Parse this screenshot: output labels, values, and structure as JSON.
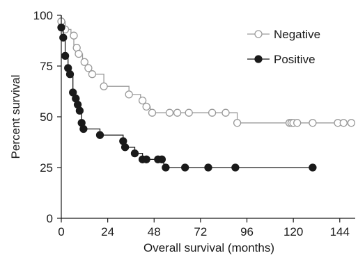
{
  "chart_data": {
    "type": "line",
    "title": "",
    "xlabel": "Overall survival (months)",
    "ylabel": "Percent survival",
    "xlim": [
      0,
      152
    ],
    "ylim": [
      0,
      100
    ],
    "xticks": [
      0,
      24,
      48,
      72,
      96,
      120,
      144
    ],
    "yticks": [
      0,
      25,
      50,
      75,
      100
    ],
    "grid": false,
    "legend_position": "top-right",
    "series": [
      {
        "name": "Negative",
        "color": "#9a9a9a",
        "marker": "open-circle",
        "steps": [
          [
            0,
            100
          ],
          [
            0,
            97
          ],
          [
            2,
            97
          ],
          [
            2,
            93
          ],
          [
            5,
            93
          ],
          [
            5,
            90
          ],
          [
            6.5,
            90
          ],
          [
            6.5,
            84
          ],
          [
            8,
            84
          ],
          [
            8,
            81
          ],
          [
            11,
            81
          ],
          [
            11,
            77
          ],
          [
            13,
            77
          ],
          [
            13,
            74
          ],
          [
            15,
            74
          ],
          [
            15,
            71
          ],
          [
            22,
            71
          ],
          [
            22,
            65
          ],
          [
            35,
            65
          ],
          [
            35,
            61
          ],
          [
            41,
            61
          ],
          [
            41,
            58
          ],
          [
            43,
            58
          ],
          [
            43,
            55
          ],
          [
            46,
            55
          ],
          [
            46,
            52
          ],
          [
            91,
            52
          ],
          [
            91,
            47
          ],
          [
            152,
            47
          ]
        ],
        "points": [
          [
            0,
            97
          ],
          [
            2,
            93
          ],
          [
            6.5,
            90
          ],
          [
            8,
            84
          ],
          [
            9,
            81
          ],
          [
            12,
            77
          ],
          [
            14,
            74
          ],
          [
            16,
            71
          ],
          [
            22,
            65
          ],
          [
            35,
            61
          ],
          [
            42,
            58
          ],
          [
            44,
            55
          ],
          [
            47,
            52
          ],
          [
            56,
            52
          ],
          [
            60,
            52
          ],
          [
            66,
            52
          ],
          [
            78,
            52
          ],
          [
            85,
            52
          ],
          [
            91,
            47
          ],
          [
            118,
            47
          ],
          [
            119,
            47
          ],
          [
            120,
            47
          ],
          [
            122,
            47
          ],
          [
            130,
            47
          ],
          [
            143,
            47
          ],
          [
            146,
            47
          ],
          [
            150,
            47
          ]
        ]
      },
      {
        "name": "Positive",
        "color": "#1a1a1a",
        "marker": "filled-circle",
        "steps": [
          [
            0,
            100
          ],
          [
            0,
            94
          ],
          [
            1,
            94
          ],
          [
            1,
            89
          ],
          [
            2,
            89
          ],
          [
            2,
            80
          ],
          [
            3.5,
            80
          ],
          [
            3.5,
            74
          ],
          [
            4.5,
            74
          ],
          [
            4.5,
            71
          ],
          [
            6,
            71
          ],
          [
            6,
            62
          ],
          [
            7.5,
            62
          ],
          [
            7.5,
            59
          ],
          [
            8.5,
            59
          ],
          [
            8.5,
            56
          ],
          [
            9.5,
            56
          ],
          [
            9.5,
            53
          ],
          [
            10.5,
            53
          ],
          [
            10.5,
            47
          ],
          [
            11.5,
            47
          ],
          [
            11.5,
            44
          ],
          [
            20,
            44
          ],
          [
            20,
            41
          ],
          [
            32,
            41
          ],
          [
            32,
            38
          ],
          [
            33,
            38
          ],
          [
            33,
            35
          ],
          [
            38,
            35
          ],
          [
            38,
            32
          ],
          [
            42,
            32
          ],
          [
            42,
            29
          ],
          [
            50,
            29
          ],
          [
            50,
            29
          ],
          [
            53,
            29
          ],
          [
            53,
            25
          ],
          [
            130,
            25
          ]
        ],
        "points": [
          [
            0,
            94
          ],
          [
            1,
            89
          ],
          [
            2,
            80
          ],
          [
            3.5,
            74
          ],
          [
            4.5,
            71
          ],
          [
            6,
            62
          ],
          [
            7.5,
            59
          ],
          [
            8.5,
            56
          ],
          [
            9.5,
            53
          ],
          [
            10.5,
            47
          ],
          [
            11.5,
            44
          ],
          [
            20,
            41
          ],
          [
            32,
            38
          ],
          [
            33,
            35
          ],
          [
            38,
            32
          ],
          [
            42,
            29
          ],
          [
            44,
            29
          ],
          [
            50,
            29
          ],
          [
            52,
            29
          ],
          [
            54,
            25
          ],
          [
            64,
            25
          ],
          [
            76,
            25
          ],
          [
            90,
            25
          ],
          [
            130,
            25
          ]
        ]
      }
    ]
  }
}
